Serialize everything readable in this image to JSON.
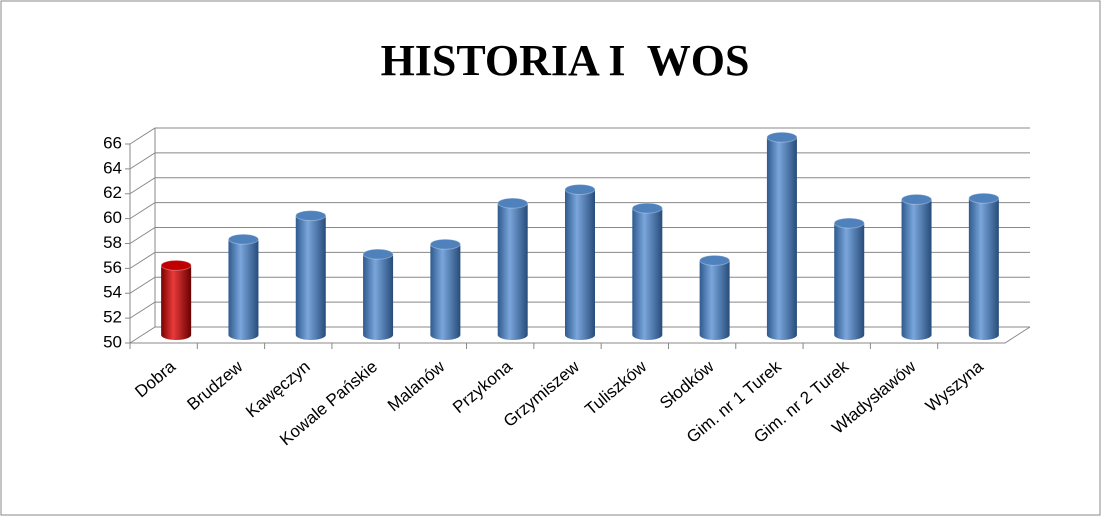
{
  "chart_data": {
    "type": "bar",
    "title": "HISTORIA I  WOS",
    "categories": [
      "Dobra",
      "Brudzew",
      "Kawęczyn",
      "Kowale Pańskie",
      "Malanów",
      "Przykona",
      "Grzymiszew",
      "Tuliszków",
      "Słodków",
      "Gim. nr 1 Turek",
      "Gim. nr 2 Turek",
      "Władysławów",
      "Wyszyna"
    ],
    "values": [
      55.6,
      57.7,
      59.6,
      56.5,
      57.3,
      60.6,
      61.7,
      60.2,
      56.0,
      65.9,
      59.0,
      60.9,
      61.0
    ],
    "colors": [
      "#c00000",
      "#4f81bd",
      "#4f81bd",
      "#4f81bd",
      "#4f81bd",
      "#4f81bd",
      "#4f81bd",
      "#4f81bd",
      "#4f81bd",
      "#4f81bd",
      "#4f81bd",
      "#4f81bd",
      "#4f81bd"
    ],
    "ylim": [
      50,
      66
    ],
    "yticks": [
      50,
      52,
      54,
      56,
      58,
      60,
      62,
      64,
      66
    ],
    "grid": true
  }
}
